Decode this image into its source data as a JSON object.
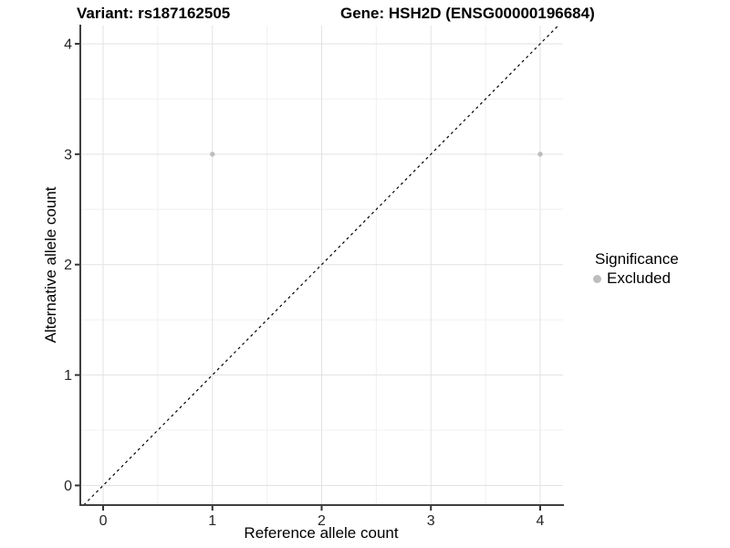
{
  "header": {
    "title_left": "Variant: rs187162505",
    "title_right": "Gene: HSH2D (ENSG00000196684)"
  },
  "chart_data": {
    "type": "scatter",
    "xlabel": "Reference allele count",
    "ylabel": "Alternative allele count",
    "xlim": [
      -0.209,
      4.209
    ],
    "ylim": [
      -0.178,
      4.165
    ],
    "x_ticks": [
      0,
      1,
      2,
      3,
      4
    ],
    "y_ticks": [
      0,
      1,
      2,
      3,
      4
    ],
    "x_minor": [
      0.5,
      1.5,
      2.5,
      3.5
    ],
    "y_minor": [
      0.5,
      1.5,
      2.5,
      3.5
    ],
    "grid": true,
    "series": [
      {
        "name": "Excluded",
        "color": "#bdbdbd",
        "points": [
          {
            "x": 1,
            "y": 3
          },
          {
            "x": 4,
            "y": 3
          }
        ]
      }
    ],
    "reference_line": {
      "type": "identity",
      "style": "dashed",
      "color": "#000000"
    },
    "legend": {
      "title": "Significance",
      "position": "right",
      "items": [
        {
          "label": "Excluded",
          "color": "#bdbdbd"
        }
      ]
    },
    "style_colors": {
      "axis_line": "#404040",
      "tick_mark": "#333333",
      "grid_major": "#e2e2e2",
      "grid_minor": "#f0f0f0",
      "background": "#ffffff"
    }
  }
}
